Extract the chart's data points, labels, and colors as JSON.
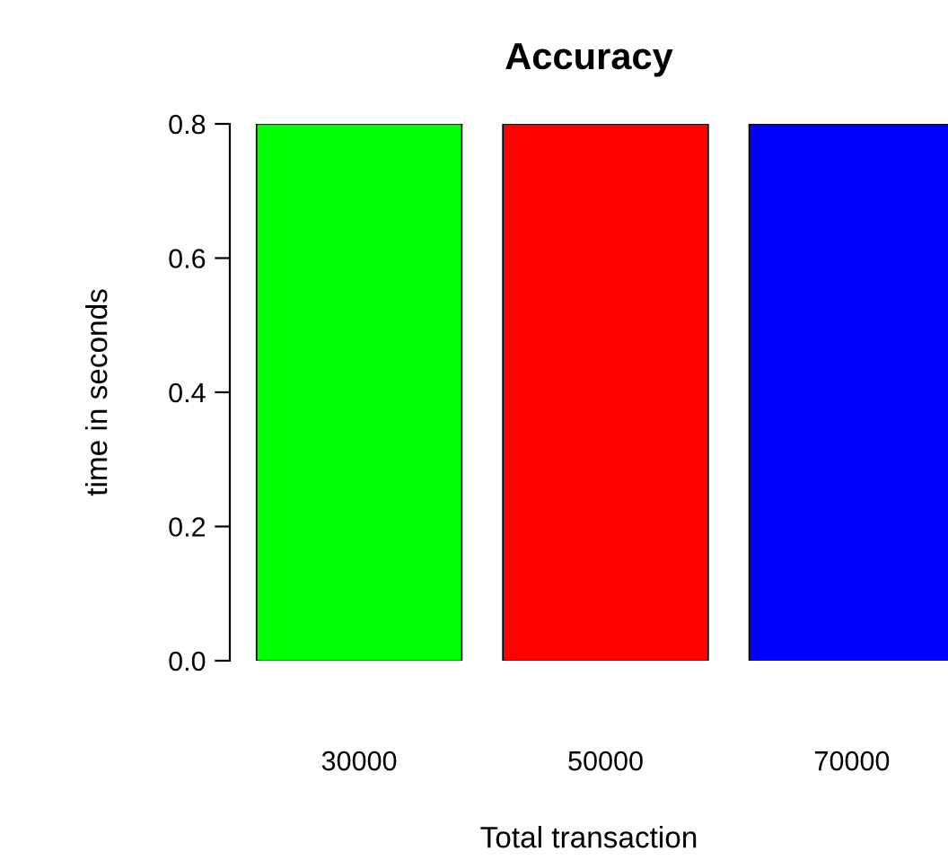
{
  "chart_data": {
    "type": "bar",
    "title": "Accuracy",
    "xlabel": "Total transaction",
    "ylabel": "time in seconds",
    "categories": [
      "30000",
      "50000",
      "70000"
    ],
    "values": [
      0.8,
      0.8,
      0.8
    ],
    "colors": [
      "#00ff00",
      "#ff0000",
      "#0000ff"
    ],
    "ylim": [
      0,
      0.8
    ],
    "yticks": [
      {
        "value": 0,
        "label": "0.0"
      },
      {
        "value": 0.2,
        "label": "0.2"
      },
      {
        "value": 0.4,
        "label": "0.4"
      },
      {
        "value": 0.6,
        "label": "0.6"
      },
      {
        "value": 0.8,
        "label": "0.8"
      }
    ],
    "grid": false,
    "legend": false
  }
}
